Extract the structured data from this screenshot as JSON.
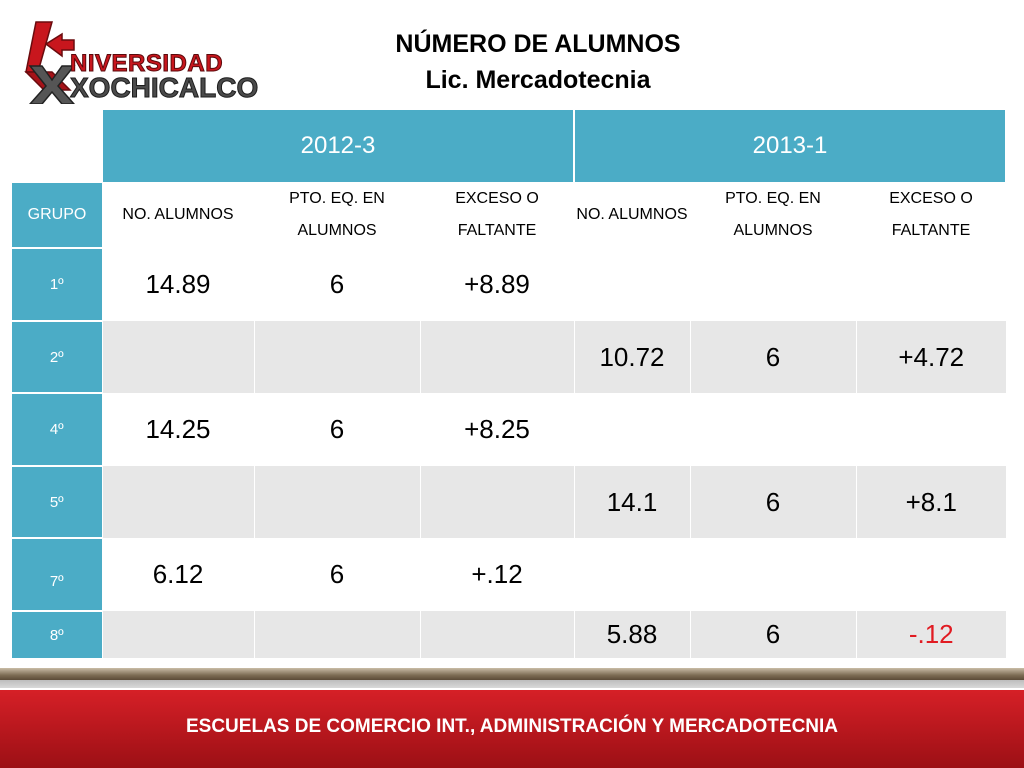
{
  "logo": {
    "line1": "NIVERSIDAD",
    "line2": "XOCHICALCO"
  },
  "title": {
    "line1": "NÚMERO DE ALUMNOS",
    "line2": "Lic. Mercadotecnia"
  },
  "table": {
    "periods": [
      "2012-3",
      "2013-1"
    ],
    "group_header": "GRUPO",
    "sub_headers": [
      "NO. ALUMNOS",
      "PTO. EQ. EN ALUMNOS",
      "EXCESO O FALTANTE",
      "NO. ALUMNOS",
      "PTO. EQ. EN ALUMNOS",
      "EXCESO O FALTANTE"
    ],
    "rows": [
      {
        "group": "1º",
        "values": [
          "14.89",
          "6",
          "+8.89",
          "",
          "",
          ""
        ]
      },
      {
        "group": "2º",
        "values": [
          "",
          "",
          "",
          "10.72",
          "6",
          "+4.72"
        ]
      },
      {
        "group": "4º",
        "values": [
          "14.25",
          "6",
          "+8.25",
          "",
          "",
          ""
        ]
      },
      {
        "group": "5º",
        "values": [
          "",
          "",
          "",
          "14.1",
          "6",
          "+8.1"
        ]
      },
      {
        "group": "7º",
        "values": [
          "6.12",
          "6",
          "+.12",
          "",
          "",
          ""
        ]
      },
      {
        "group": "8º",
        "values": [
          "",
          "",
          "",
          "5.88",
          "6",
          "-.12"
        ]
      }
    ],
    "colors": {
      "header": "#4bacc6",
      "negative": "#e11b22",
      "row_alt": "#e7e7e7"
    }
  },
  "footer": {
    "text": "ESCUELAS DE COMERCIO INT., ADMINISTRACIÓN Y MERCADOTECNIA"
  }
}
